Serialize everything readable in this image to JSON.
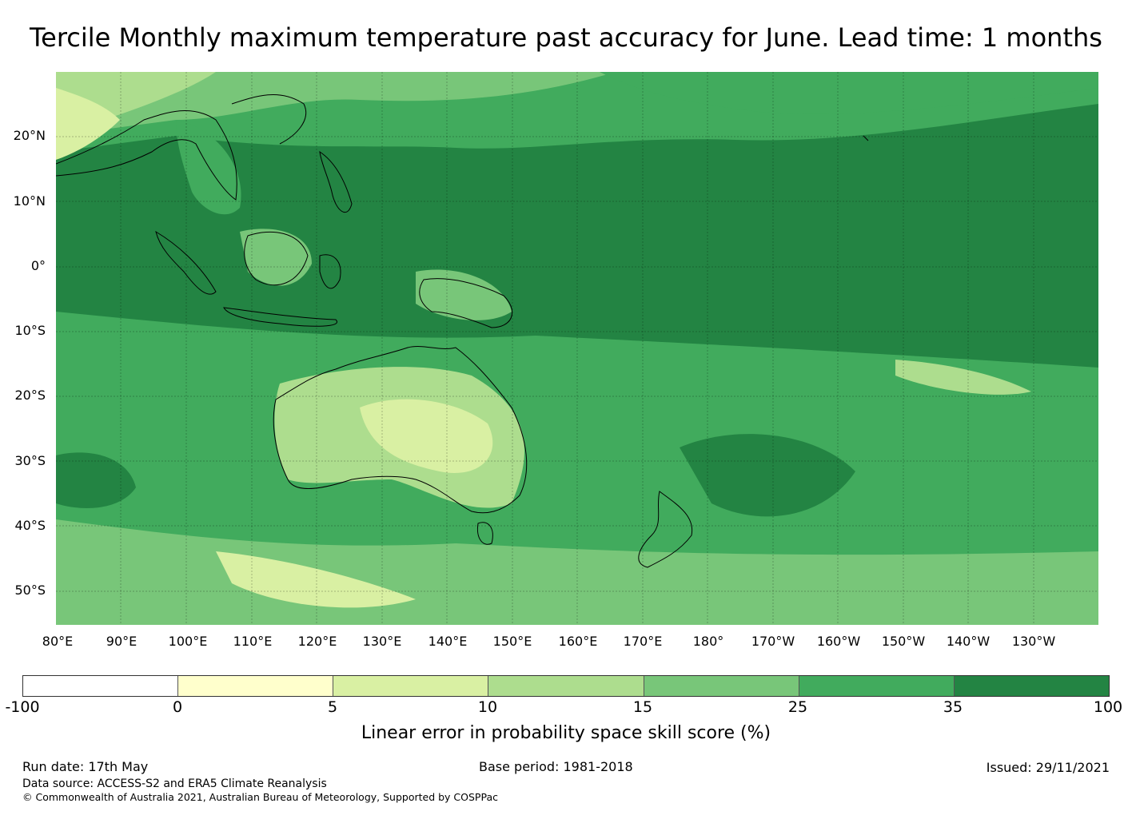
{
  "title": "Tercile Monthly maximum temperature past accuracy for June. Lead time: 1 months",
  "map": {
    "lat_labels": [
      "20°N",
      "10°N",
      "0°",
      "10°S",
      "20°S",
      "30°S",
      "40°S",
      "50°S"
    ],
    "lon_labels": [
      "80°E",
      "90°E",
      "100°E",
      "110°E",
      "120°E",
      "130°E",
      "140°E",
      "150°E",
      "160°E",
      "170°E",
      "180°",
      "170°W",
      "160°W",
      "150°W",
      "140°W",
      "130°W"
    ],
    "extent": {
      "lon": [
        80,
        240
      ],
      "lat": [
        -55,
        30
      ]
    }
  },
  "colorbar": {
    "ticks": [
      "-100",
      "0",
      "5",
      "10",
      "15",
      "25",
      "35",
      "100"
    ],
    "colors": [
      "#ffffff",
      "#ffffcc",
      "#d9f0a3",
      "#addd8e",
      "#78c679",
      "#41ab5d",
      "#238443"
    ],
    "label": "Linear error in probability space skill score (%)"
  },
  "footer": {
    "run_date": "Run date: 17th May",
    "base_period": "Base period: 1981-2018",
    "issued": "Issued: 29/11/2021",
    "data_source": "Data source: ACCESS-S2 and ERA5 Climate Reanalysis",
    "copyright": "© Commonwealth of Australia 2021, Australian Bureau of Meteorology, Supported by COSPPac"
  }
}
